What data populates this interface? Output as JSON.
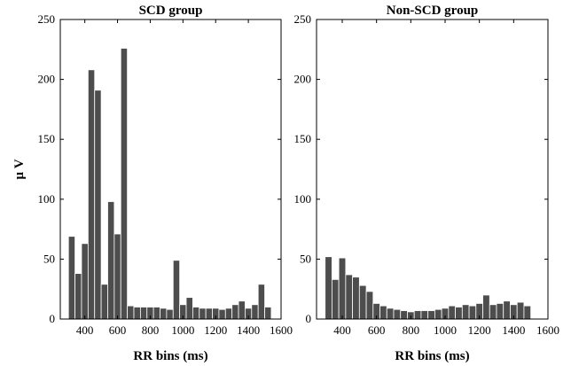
{
  "chart_data": [
    {
      "type": "bar",
      "title": "SCD group",
      "xlabel": "RR bins (ms)",
      "ylabel": "μ V",
      "xlim": [
        250,
        1600
      ],
      "ylim": [
        0,
        250
      ],
      "xticks": [
        400,
        600,
        800,
        1000,
        1200,
        1400,
        1600
      ],
      "yticks": [
        0,
        50,
        100,
        150,
        200,
        250
      ],
      "bin_width": 40,
      "x": [
        320,
        360,
        400,
        440,
        480,
        520,
        560,
        600,
        640,
        680,
        720,
        760,
        800,
        840,
        880,
        920,
        960,
        1000,
        1040,
        1080,
        1120,
        1160,
        1200,
        1240,
        1280,
        1320,
        1360,
        1400,
        1440,
        1480,
        1520
      ],
      "values": [
        69,
        38,
        63,
        208,
        191,
        29,
        98,
        71,
        226,
        11,
        10,
        10,
        10,
        10,
        9,
        8,
        49,
        12,
        18,
        10,
        9,
        9,
        9,
        8,
        9,
        12,
        15,
        9,
        12,
        29,
        10
      ],
      "color": "#4d4d4d",
      "grid": false
    },
    {
      "type": "bar",
      "title": "Non-SCD group",
      "xlabel": "RR bins (ms)",
      "ylabel": "",
      "xlim": [
        250,
        1600
      ],
      "ylim": [
        0,
        250
      ],
      "xticks": [
        400,
        600,
        800,
        1000,
        1200,
        1400,
        1600
      ],
      "yticks": [
        0,
        50,
        100,
        150,
        200,
        250
      ],
      "bin_width": 40,
      "x": [
        320,
        360,
        400,
        440,
        480,
        520,
        560,
        600,
        640,
        680,
        720,
        760,
        800,
        840,
        880,
        920,
        960,
        1000,
        1040,
        1080,
        1120,
        1160,
        1200,
        1240,
        1280,
        1320,
        1360,
        1400,
        1440,
        1480,
        1520
      ],
      "values": [
        52,
        33,
        51,
        37,
        35,
        28,
        23,
        13,
        11,
        9,
        8,
        7,
        6,
        7,
        7,
        7,
        8,
        9,
        11,
        10,
        12,
        11,
        13,
        20,
        12,
        13,
        15,
        12,
        14,
        11,
        0
      ],
      "color": "#4d4d4d",
      "grid": false
    }
  ]
}
